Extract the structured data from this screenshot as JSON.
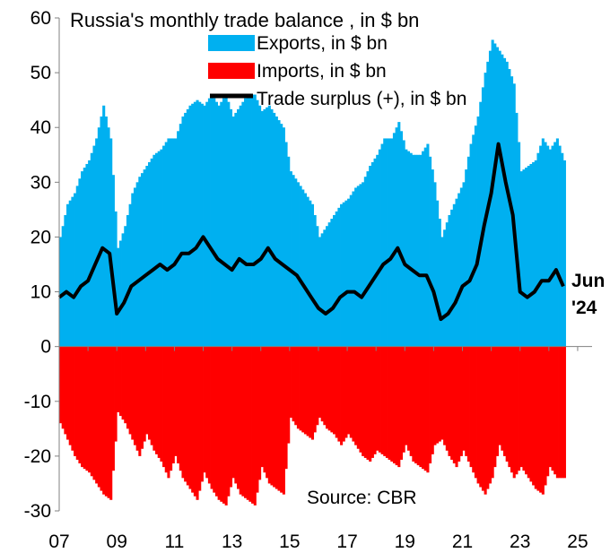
{
  "chart_data": {
    "type": "bar",
    "title": "Russia's monthly trade balance , in $ bn",
    "source": "Source: CBR",
    "annotation": "Jun '24",
    "annotation_lines": [
      "Jun",
      "'24"
    ],
    "ylim": [
      -30,
      60
    ],
    "yticks": [
      -30,
      -20,
      -10,
      0,
      10,
      20,
      30,
      40,
      50,
      60
    ],
    "ytick_labels": [
      "-30",
      "-20",
      "-10",
      "0",
      "10",
      "20",
      "30",
      "40",
      "50",
      "60"
    ],
    "xlim": [
      2007.0,
      2025.5
    ],
    "xticks": [
      2007,
      2009,
      2011,
      2013,
      2015,
      2017,
      2019,
      2021,
      2023,
      2025
    ],
    "xtick_labels": [
      "07",
      "09",
      "11",
      "13",
      "15",
      "17",
      "19",
      "21",
      "23",
      "25"
    ],
    "grid": false,
    "legend_position": "top-center",
    "colors": {
      "exports": "#00B0F0",
      "imports": "#FF0000",
      "surplus": "#000000"
    },
    "series": [
      {
        "name": "Exports, in $ bn",
        "kind": "bar",
        "points": [
          [
            2007.0,
            20
          ],
          [
            2007.25,
            26
          ],
          [
            2007.5,
            28
          ],
          [
            2007.75,
            32
          ],
          [
            2008.0,
            34
          ],
          [
            2008.25,
            38
          ],
          [
            2008.5,
            44
          ],
          [
            2008.75,
            38
          ],
          [
            2009.0,
            18
          ],
          [
            2009.25,
            22
          ],
          [
            2009.5,
            28
          ],
          [
            2009.75,
            31
          ],
          [
            2010.0,
            33
          ],
          [
            2010.25,
            35
          ],
          [
            2010.5,
            36
          ],
          [
            2010.75,
            38
          ],
          [
            2011.0,
            38
          ],
          [
            2011.25,
            42
          ],
          [
            2011.5,
            44
          ],
          [
            2011.75,
            45
          ],
          [
            2012.0,
            44
          ],
          [
            2012.25,
            46
          ],
          [
            2012.5,
            44
          ],
          [
            2012.75,
            46
          ],
          [
            2013.0,
            42
          ],
          [
            2013.25,
            44
          ],
          [
            2013.5,
            46
          ],
          [
            2013.75,
            46
          ],
          [
            2014.0,
            43
          ],
          [
            2014.25,
            44
          ],
          [
            2014.5,
            42
          ],
          [
            2014.75,
            40
          ],
          [
            2015.0,
            32
          ],
          [
            2015.25,
            30
          ],
          [
            2015.5,
            28
          ],
          [
            2015.75,
            26
          ],
          [
            2016.0,
            20
          ],
          [
            2016.25,
            22
          ],
          [
            2016.5,
            24
          ],
          [
            2016.75,
            26
          ],
          [
            2017.0,
            27
          ],
          [
            2017.25,
            29
          ],
          [
            2017.5,
            30
          ],
          [
            2017.75,
            33
          ],
          [
            2018.0,
            35
          ],
          [
            2018.25,
            38
          ],
          [
            2018.5,
            38
          ],
          [
            2018.75,
            41
          ],
          [
            2019.0,
            36
          ],
          [
            2019.25,
            35
          ],
          [
            2019.5,
            35
          ],
          [
            2019.75,
            37
          ],
          [
            2020.0,
            30
          ],
          [
            2020.25,
            20
          ],
          [
            2020.5,
            24
          ],
          [
            2020.75,
            27
          ],
          [
            2021.0,
            30
          ],
          [
            2021.25,
            37
          ],
          [
            2021.5,
            42
          ],
          [
            2021.75,
            50
          ],
          [
            2022.0,
            56
          ],
          [
            2022.25,
            54
          ],
          [
            2022.5,
            52
          ],
          [
            2022.75,
            48
          ],
          [
            2023.0,
            32
          ],
          [
            2023.25,
            33
          ],
          [
            2023.5,
            34
          ],
          [
            2023.75,
            38
          ],
          [
            2024.0,
            36
          ],
          [
            2024.25,
            38
          ],
          [
            2024.5,
            34
          ]
        ]
      },
      {
        "name": "Imports, in $ bn",
        "kind": "bar",
        "points": [
          [
            2007.0,
            -14
          ],
          [
            2007.25,
            -17
          ],
          [
            2007.5,
            -20
          ],
          [
            2007.75,
            -22
          ],
          [
            2008.0,
            -23
          ],
          [
            2008.25,
            -25
          ],
          [
            2008.5,
            -27
          ],
          [
            2008.75,
            -28
          ],
          [
            2009.0,
            -12
          ],
          [
            2009.25,
            -14
          ],
          [
            2009.5,
            -17
          ],
          [
            2009.75,
            -20
          ],
          [
            2010.0,
            -16
          ],
          [
            2010.25,
            -19
          ],
          [
            2010.5,
            -21
          ],
          [
            2010.75,
            -24
          ],
          [
            2011.0,
            -20
          ],
          [
            2011.25,
            -24
          ],
          [
            2011.5,
            -26
          ],
          [
            2011.75,
            -28
          ],
          [
            2012.0,
            -23
          ],
          [
            2012.25,
            -26
          ],
          [
            2012.5,
            -28
          ],
          [
            2012.75,
            -29
          ],
          [
            2013.0,
            -24
          ],
          [
            2013.25,
            -27
          ],
          [
            2013.5,
            -28
          ],
          [
            2013.75,
            -29
          ],
          [
            2014.0,
            -22
          ],
          [
            2014.25,
            -25
          ],
          [
            2014.5,
            -26
          ],
          [
            2014.75,
            -27
          ],
          [
            2015.0,
            -13
          ],
          [
            2015.25,
            -15
          ],
          [
            2015.5,
            -16
          ],
          [
            2015.75,
            -17
          ],
          [
            2016.0,
            -13
          ],
          [
            2016.25,
            -15
          ],
          [
            2016.5,
            -16
          ],
          [
            2016.75,
            -18
          ],
          [
            2017.0,
            -16
          ],
          [
            2017.25,
            -18
          ],
          [
            2017.5,
            -20
          ],
          [
            2017.75,
            -21
          ],
          [
            2018.0,
            -19
          ],
          [
            2018.25,
            -20
          ],
          [
            2018.5,
            -21
          ],
          [
            2018.75,
            -22
          ],
          [
            2019.0,
            -18
          ],
          [
            2019.25,
            -21
          ],
          [
            2019.5,
            -22
          ],
          [
            2019.75,
            -23
          ],
          [
            2020.0,
            -18
          ],
          [
            2020.25,
            -17
          ],
          [
            2020.5,
            -20
          ],
          [
            2020.75,
            -22
          ],
          [
            2021.0,
            -19
          ],
          [
            2021.25,
            -22
          ],
          [
            2021.5,
            -25
          ],
          [
            2021.75,
            -27
          ],
          [
            2022.0,
            -24
          ],
          [
            2022.25,
            -18
          ],
          [
            2022.5,
            -21
          ],
          [
            2022.75,
            -24
          ],
          [
            2023.0,
            -22
          ],
          [
            2023.25,
            -24
          ],
          [
            2023.5,
            -26
          ],
          [
            2023.75,
            -27
          ],
          [
            2024.0,
            -22
          ],
          [
            2024.25,
            -24
          ],
          [
            2024.5,
            -24
          ]
        ]
      },
      {
        "name": "Trade surplus (+), in $ bn",
        "kind": "line",
        "points": [
          [
            2007.0,
            9
          ],
          [
            2007.25,
            10
          ],
          [
            2007.5,
            9
          ],
          [
            2007.75,
            11
          ],
          [
            2008.0,
            12
          ],
          [
            2008.25,
            15
          ],
          [
            2008.5,
            18
          ],
          [
            2008.75,
            17
          ],
          [
            2009.0,
            6
          ],
          [
            2009.25,
            8
          ],
          [
            2009.5,
            11
          ],
          [
            2009.75,
            12
          ],
          [
            2010.0,
            13
          ],
          [
            2010.25,
            14
          ],
          [
            2010.5,
            15
          ],
          [
            2010.75,
            14
          ],
          [
            2011.0,
            15
          ],
          [
            2011.25,
            17
          ],
          [
            2011.5,
            17
          ],
          [
            2011.75,
            18
          ],
          [
            2012.0,
            20
          ],
          [
            2012.25,
            18
          ],
          [
            2012.5,
            16
          ],
          [
            2012.75,
            15
          ],
          [
            2013.0,
            14
          ],
          [
            2013.25,
            16
          ],
          [
            2013.5,
            15
          ],
          [
            2013.75,
            15
          ],
          [
            2014.0,
            16
          ],
          [
            2014.25,
            18
          ],
          [
            2014.5,
            16
          ],
          [
            2014.75,
            15
          ],
          [
            2015.0,
            14
          ],
          [
            2015.25,
            13
          ],
          [
            2015.5,
            11
          ],
          [
            2015.75,
            9
          ],
          [
            2016.0,
            7
          ],
          [
            2016.25,
            6
          ],
          [
            2016.5,
            7
          ],
          [
            2016.75,
            9
          ],
          [
            2017.0,
            10
          ],
          [
            2017.25,
            10
          ],
          [
            2017.5,
            9
          ],
          [
            2017.75,
            11
          ],
          [
            2018.0,
            13
          ],
          [
            2018.25,
            15
          ],
          [
            2018.5,
            16
          ],
          [
            2018.75,
            18
          ],
          [
            2019.0,
            15
          ],
          [
            2019.25,
            14
          ],
          [
            2019.5,
            13
          ],
          [
            2019.75,
            13
          ],
          [
            2020.0,
            10
          ],
          [
            2020.25,
            5
          ],
          [
            2020.5,
            6
          ],
          [
            2020.75,
            8
          ],
          [
            2021.0,
            11
          ],
          [
            2021.25,
            12
          ],
          [
            2021.5,
            15
          ],
          [
            2021.75,
            22
          ],
          [
            2022.0,
            28
          ],
          [
            2022.25,
            37
          ],
          [
            2022.5,
            30
          ],
          [
            2022.75,
            24
          ],
          [
            2023.0,
            10
          ],
          [
            2023.25,
            9
          ],
          [
            2023.5,
            10
          ],
          [
            2023.75,
            12
          ],
          [
            2024.0,
            12
          ],
          [
            2024.25,
            14
          ],
          [
            2024.5,
            11
          ]
        ]
      }
    ]
  }
}
